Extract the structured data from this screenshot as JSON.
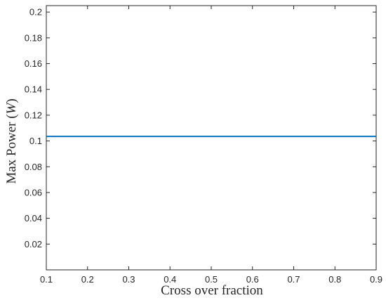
{
  "chart_data": {
    "type": "line",
    "xlabel": "Cross over fraction",
    "ylabel": "Max Power (W)",
    "ylabel_parts": {
      "prefix": "Max Power (",
      "unit": "W",
      "suffix": ")"
    },
    "xlim": [
      0.1,
      0.9
    ],
    "ylim": [
      0.0,
      0.205
    ],
    "x_ticks": [
      0.1,
      0.2,
      0.3,
      0.4,
      0.5,
      0.6,
      0.7,
      0.8,
      0.9
    ],
    "x_tick_labels": [
      "0.1",
      "0.2",
      "0.3",
      "0.4",
      "0.5",
      "0.6",
      "0.7",
      "0.8",
      "0.9"
    ],
    "y_ticks": [
      0.02,
      0.04,
      0.06,
      0.08,
      0.1,
      0.12,
      0.14,
      0.16,
      0.18,
      0.2
    ],
    "y_tick_labels": [
      "0.02",
      "0.04",
      "0.06",
      "0.08",
      "0.1",
      "0.12",
      "0.14",
      "0.16",
      "0.18",
      "0.2"
    ],
    "grid": false,
    "series": [
      {
        "color": "#0072BD",
        "x": [
          0.1,
          0.9
        ],
        "y": [
          0.1035,
          0.1035
        ]
      }
    ]
  }
}
